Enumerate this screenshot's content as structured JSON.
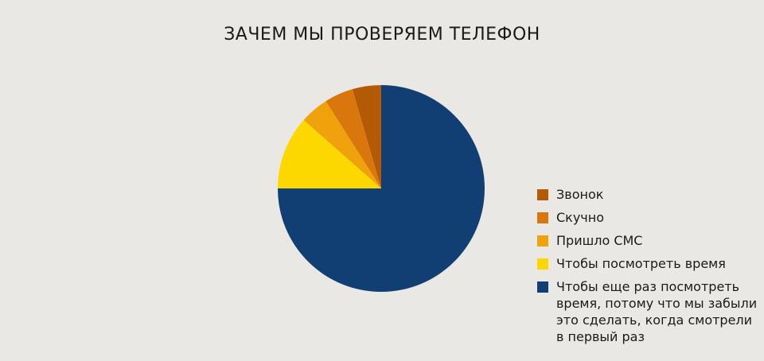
{
  "chart_data": {
    "type": "pie",
    "title": "ЗАЧЕМ МЫ ПРОВЕРЯЕМ ТЕЛЕФОН",
    "categories": [
      "Звонок",
      "Скучно",
      "Пришло СМС",
      "Чтобы посмотреть время",
      "Чтобы еще раз посмотреть время, потому что мы забыли это сделать, когда смотрели в первый раз"
    ],
    "values": [
      4.5,
      4.5,
      4.5,
      11.5,
      75
    ],
    "colors": [
      "#b45a06",
      "#d9760c",
      "#efa20c",
      "#fdd700",
      "#123f73"
    ],
    "legend": "right"
  }
}
